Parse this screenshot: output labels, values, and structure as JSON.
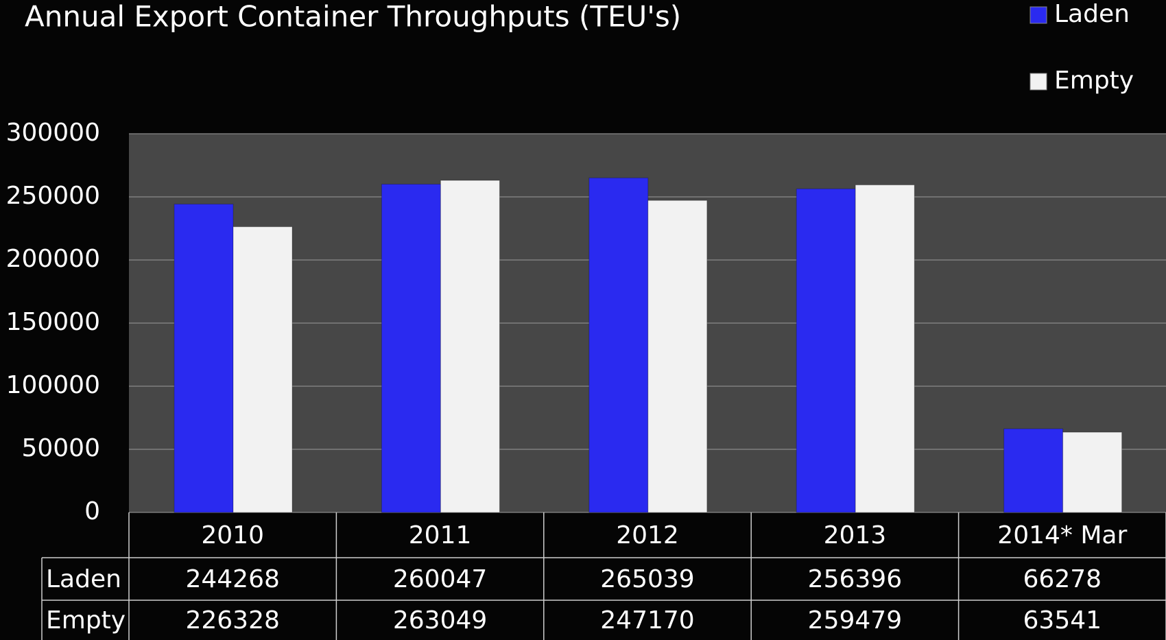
{
  "chart_data": {
    "type": "bar",
    "title": "Annual Export Container Throughputs (TEU's)",
    "categories": [
      "2010",
      "2011",
      "2012",
      "2013",
      "2014* Mar"
    ],
    "series": [
      {
        "name": "Laden",
        "color": "#2a2af0",
        "values": [
          244268,
          260047,
          265039,
          256396,
          66278
        ]
      },
      {
        "name": "Empty",
        "color": "#f2f2f2",
        "values": [
          226328,
          263049,
          247170,
          259479,
          63541
        ]
      }
    ],
    "ylim": [
      0,
      300000
    ],
    "yticks": [
      0,
      50000,
      100000,
      150000,
      200000,
      250000,
      300000
    ],
    "grid": true,
    "legend": "top-right"
  }
}
